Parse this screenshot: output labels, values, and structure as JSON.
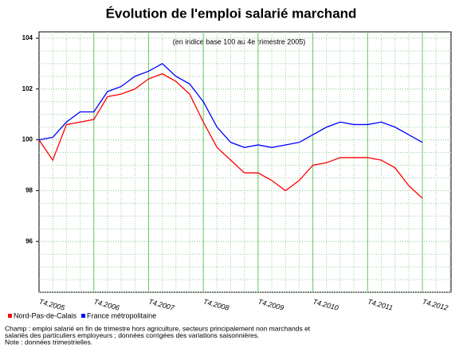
{
  "chart_data": {
    "type": "line",
    "title": "Évolution de l'emploi salarié marchand",
    "subtitle": "(en indice base 100 au 4e trimestre 2005)",
    "categories": [
      "T4.2005",
      null,
      null,
      null,
      "T4.2006",
      null,
      null,
      null,
      "T4.2007",
      null,
      null,
      null,
      "T4.2008",
      null,
      null,
      null,
      "T4.2009",
      null,
      null,
      null,
      "T4.2010",
      null,
      null,
      null,
      "T4.2011",
      null,
      null,
      null,
      "T4.2012"
    ],
    "series": [
      {
        "name": "Nord-Pas-de-Calais",
        "color": "#ff0000",
        "values": [
          100.0,
          99.2,
          100.6,
          100.7,
          100.8,
          101.7,
          101.8,
          102.0,
          102.4,
          102.6,
          102.3,
          101.8,
          100.7,
          99.7,
          99.2,
          98.7,
          98.7,
          98.4,
          98.0,
          98.4,
          99.0,
          99.1,
          99.3,
          99.3,
          99.3,
          99.2,
          98.9,
          98.2,
          97.7
        ]
      },
      {
        "name": "France métropolitaine",
        "color": "#0000ff",
        "values": [
          100.0,
          100.1,
          100.7,
          101.1,
          101.1,
          101.9,
          102.1,
          102.5,
          102.7,
          103.0,
          102.5,
          102.2,
          101.5,
          100.5,
          99.9,
          99.7,
          99.8,
          99.7,
          99.8,
          99.9,
          100.2,
          100.5,
          100.7,
          100.6,
          100.6,
          100.7,
          100.5,
          100.2,
          99.9
        ]
      }
    ],
    "ylim": [
      94,
      104.25
    ],
    "yticks": [
      96,
      98,
      100,
      102,
      104
    ],
    "grid": true,
    "legend": "bottom-left",
    "notes": [
      "Champ : emploi salarié en fin de trimestre hors agriculture, secteurs principalement non marchands et",
      "salariés des particuliers employeurs ; données corrigées des variations saisonnières.",
      "Note : données trimestrielles."
    ]
  }
}
